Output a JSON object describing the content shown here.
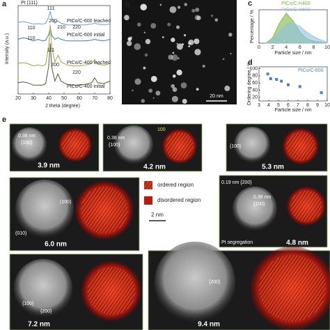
{
  "panel_labels": [
    "a",
    "b",
    "c",
    "d",
    "e"
  ],
  "chart_data": [
    {
      "type": "line",
      "x_label": "2 theta (degree)",
      "y_label": "Intensity (a.u.)",
      "x": [
        20,
        23,
        26,
        30,
        33,
        36,
        38,
        40,
        41,
        42,
        44,
        46,
        48,
        52,
        56,
        60,
        64,
        68,
        70,
        72,
        76,
        80
      ],
      "xlim": [
        20,
        80
      ],
      "xticks": [
        20,
        30,
        40,
        50,
        60,
        70,
        80
      ],
      "ylim": [
        0,
        11
      ],
      "series": [
        {
          "name": "PtCo/C-600 leached",
          "color": "#6a9fd8",
          "values": [
            8.9,
            9.0,
            8.9,
            8.7,
            8.75,
            8.7,
            8.8,
            9.6,
            10.3,
            9.4,
            8.8,
            9.1,
            8.8,
            8.6,
            8.6,
            8.6,
            8.6,
            8.7,
            8.8,
            8.7,
            8.6,
            8.7
          ]
        },
        {
          "name": "PtCo/C-600 initial",
          "color": "#3f74b8",
          "values": [
            6.8,
            7.0,
            6.9,
            6.6,
            6.8,
            6.6,
            6.7,
            7.4,
            8.2,
            7.3,
            6.8,
            7.0,
            6.8,
            6.6,
            6.6,
            6.6,
            6.6,
            6.7,
            6.8,
            6.7,
            6.6,
            6.8
          ]
        },
        {
          "name": "PtCo/C-400 leached",
          "color": "#a8a03a",
          "values": [
            3.8,
            3.9,
            3.8,
            3.5,
            3.6,
            3.5,
            3.7,
            6.0,
            8.6,
            5.8,
            4.0,
            4.8,
            4.0,
            3.6,
            3.5,
            3.5,
            3.6,
            3.8,
            4.3,
            3.7,
            3.6,
            3.8
          ]
        },
        {
          "name": "PtCo/C-400 initial",
          "color": "#4a5a30",
          "values": [
            1.4,
            1.5,
            1.4,
            1.1,
            1.1,
            1.1,
            1.3,
            3.5,
            6.3,
            3.3,
            1.6,
            2.5,
            1.6,
            1.2,
            1.1,
            1.1,
            1.2,
            1.4,
            2.0,
            1.4,
            1.3,
            1.6
          ]
        }
      ],
      "annotations": [
        "Pt (111)",
        "111",
        "110",
        "200",
        "210",
        "220",
        "110",
        "111",
        "200",
        "220"
      ]
    },
    {
      "type": "area",
      "x_label": "Particle size / nm",
      "y_label": "Percentage / %",
      "x": [
        1,
        2,
        3,
        4,
        5,
        6,
        7,
        8,
        9,
        10
      ],
      "xlim": [
        0,
        10
      ],
      "xticks": [
        0,
        2,
        4,
        6,
        8,
        10
      ],
      "ylim": [
        0,
        30
      ],
      "series": [
        {
          "name": "PtCo/C-H400",
          "color": "#7ab83a",
          "values": [
            0,
            5,
            18,
            27,
            20,
            10,
            4,
            2,
            1,
            0
          ]
        },
        {
          "name": "PtCo/C-H600",
          "color": "#8fbfe8",
          "values": [
            0,
            3,
            10,
            17,
            18,
            15,
            10,
            6,
            3,
            1
          ]
        }
      ]
    },
    {
      "type": "scatter",
      "x_label": "Particle size / nm",
      "y_label": "Ordering degree / %",
      "x": [
        3.9,
        4.2,
        4.8,
        5.3,
        6.0,
        7.2,
        9.4
      ],
      "xlim": [
        3,
        10
      ],
      "xticks": [
        3,
        4,
        5,
        6,
        7,
        8,
        9,
        10
      ],
      "ylim": [
        10,
        105
      ],
      "yticks": [
        20,
        40,
        60,
        80,
        100
      ],
      "series": [
        {
          "name": "PtCo/C-600",
          "color": "#4a7fc8",
          "values": [
            85,
            72,
            70,
            65,
            55,
            50,
            33
          ]
        }
      ]
    }
  ],
  "image_b": {
    "scale_bar": "20 nm"
  },
  "panel_e": {
    "images": [
      {
        "size": "3.9 nm",
        "annotations": [
          "0.38 nm",
          "{100}"
        ]
      },
      {
        "size": "4.2 nm",
        "annotations": [
          "0.38 nm",
          "{100}",
          "100"
        ]
      },
      {
        "size": "5.3 nm",
        "annotations": [
          "{100}"
        ]
      },
      {
        "size": "6.0 nm",
        "annotations": [
          "(100)",
          "(010)"
        ]
      },
      {
        "size": "4.8 nm",
        "annotations": [
          "0.19 nm {200}",
          "0.38 nm",
          "{100}",
          "Pt segregation"
        ]
      },
      {
        "size": "7.2 nm",
        "annotations": [
          "{100}",
          "{200}"
        ]
      },
      {
        "size": "9.4 nm",
        "annotations": [
          "{200}"
        ]
      }
    ],
    "legend": [
      "ordered region",
      "disordered region"
    ],
    "scale_bar": "2 nm"
  }
}
